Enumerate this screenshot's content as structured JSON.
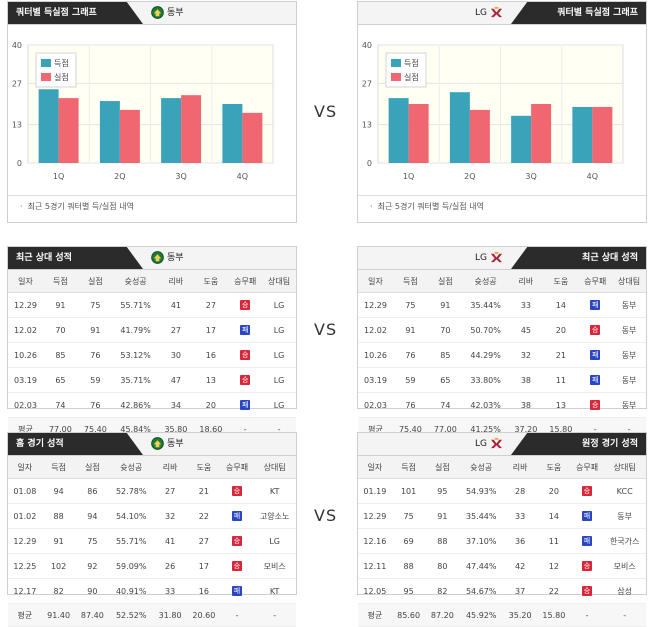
{
  "sections": {
    "quarter": {
      "title": "쿼터별 득실점 그래프",
      "note": "최근 5경기 쿼터별 득/실점 내역"
    },
    "recent": {
      "title": "최근 상대 성적"
    },
    "venue_left": {
      "title": "홈 경기 성적"
    },
    "venue_right": {
      "title": "원정 경기 성적"
    }
  },
  "teams": {
    "left": "동부",
    "right": "LG"
  },
  "vs": "VS",
  "colors": {
    "scored": "#3aa3b9",
    "conceded": "#f06772",
    "win": "#d9263a",
    "loss": "#2a46c4"
  },
  "table_headers": [
    "일자",
    "득점",
    "실점",
    "슛성공",
    "리바",
    "도움",
    "승무패",
    "상대팀"
  ],
  "result_labels": {
    "win": "승",
    "loss": "패"
  },
  "chart_data": [
    {
      "type": "bar",
      "categories": [
        "1Q",
        "2Q",
        "3Q",
        "4Q"
      ],
      "series": [
        {
          "name": "득점",
          "values": [
            25,
            21,
            22,
            20
          ]
        },
        {
          "name": "실점",
          "values": [
            22,
            18,
            23,
            17
          ]
        }
      ],
      "yticks": [
        "0",
        "13",
        "27",
        "40"
      ],
      "ylim": [
        0,
        40
      ],
      "legend": "top-left",
      "grid": true
    },
    {
      "type": "bar",
      "categories": [
        "1Q",
        "2Q",
        "3Q",
        "4Q"
      ],
      "series": [
        {
          "name": "득점",
          "values": [
            22,
            24,
            16,
            19
          ]
        },
        {
          "name": "실점",
          "values": [
            20,
            18,
            20,
            19
          ]
        }
      ],
      "yticks": [
        "0",
        "13",
        "27",
        "40"
      ],
      "ylim": [
        0,
        40
      ],
      "legend": "top-left",
      "grid": true
    }
  ],
  "recent_left": {
    "rows": [
      {
        "date": "12.29",
        "pts": "91",
        "opp_pts": "75",
        "fg": "55.71%",
        "reb": "41",
        "ast": "27",
        "result": "win",
        "opp": "LG"
      },
      {
        "date": "12.02",
        "pts": "70",
        "opp_pts": "91",
        "fg": "41.79%",
        "reb": "27",
        "ast": "17",
        "result": "loss",
        "opp": "LG"
      },
      {
        "date": "10.26",
        "pts": "85",
        "opp_pts": "76",
        "fg": "53.12%",
        "reb": "30",
        "ast": "16",
        "result": "win",
        "opp": "LG"
      },
      {
        "date": "03.19",
        "pts": "65",
        "opp_pts": "59",
        "fg": "35.71%",
        "reb": "47",
        "ast": "13",
        "result": "win",
        "opp": "LG"
      },
      {
        "date": "02.03",
        "pts": "74",
        "opp_pts": "76",
        "fg": "42.86%",
        "reb": "34",
        "ast": "20",
        "result": "loss",
        "opp": "LG"
      }
    ],
    "avg": {
      "label": "평균",
      "pts": "77.00",
      "opp_pts": "75.40",
      "fg": "45.84%",
      "reb": "35.80",
      "ast": "18.60",
      "result": "-",
      "opp": "-"
    }
  },
  "recent_right": {
    "rows": [
      {
        "date": "12.29",
        "pts": "75",
        "opp_pts": "91",
        "fg": "35.44%",
        "reb": "33",
        "ast": "14",
        "result": "loss",
        "opp": "동부"
      },
      {
        "date": "12.02",
        "pts": "91",
        "opp_pts": "70",
        "fg": "50.70%",
        "reb": "45",
        "ast": "20",
        "result": "win",
        "opp": "동부"
      },
      {
        "date": "10.26",
        "pts": "76",
        "opp_pts": "85",
        "fg": "44.29%",
        "reb": "32",
        "ast": "21",
        "result": "loss",
        "opp": "동부"
      },
      {
        "date": "03.19",
        "pts": "59",
        "opp_pts": "65",
        "fg": "33.80%",
        "reb": "38",
        "ast": "11",
        "result": "loss",
        "opp": "동부"
      },
      {
        "date": "02.03",
        "pts": "76",
        "opp_pts": "74",
        "fg": "42.03%",
        "reb": "38",
        "ast": "13",
        "result": "win",
        "opp": "동부"
      }
    ],
    "avg": {
      "label": "평균",
      "pts": "75.40",
      "opp_pts": "77.00",
      "fg": "41.25%",
      "reb": "37.20",
      "ast": "15.80",
      "result": "-",
      "opp": "-"
    }
  },
  "venue_left_table": {
    "rows": [
      {
        "date": "01.08",
        "pts": "94",
        "opp_pts": "86",
        "fg": "52.78%",
        "reb": "27",
        "ast": "21",
        "result": "win",
        "opp": "KT"
      },
      {
        "date": "01.02",
        "pts": "88",
        "opp_pts": "94",
        "fg": "54.10%",
        "reb": "32",
        "ast": "22",
        "result": "loss",
        "opp": "고양소노"
      },
      {
        "date": "12.29",
        "pts": "91",
        "opp_pts": "75",
        "fg": "55.71%",
        "reb": "41",
        "ast": "27",
        "result": "win",
        "opp": "LG"
      },
      {
        "date": "12.25",
        "pts": "102",
        "opp_pts": "92",
        "fg": "59.09%",
        "reb": "26",
        "ast": "17",
        "result": "win",
        "opp": "모비스"
      },
      {
        "date": "12.17",
        "pts": "82",
        "opp_pts": "90",
        "fg": "40.91%",
        "reb": "33",
        "ast": "16",
        "result": "loss",
        "opp": "KT"
      }
    ],
    "avg": {
      "label": "평균",
      "pts": "91.40",
      "opp_pts": "87.40",
      "fg": "52.52%",
      "reb": "31.80",
      "ast": "20.60",
      "result": "-",
      "opp": "-"
    }
  },
  "venue_right_table": {
    "rows": [
      {
        "date": "01.19",
        "pts": "101",
        "opp_pts": "95",
        "fg": "54.93%",
        "reb": "28",
        "ast": "20",
        "result": "win",
        "opp": "KCC"
      },
      {
        "date": "12.29",
        "pts": "75",
        "opp_pts": "91",
        "fg": "35.44%",
        "reb": "33",
        "ast": "14",
        "result": "loss",
        "opp": "동부"
      },
      {
        "date": "12.16",
        "pts": "69",
        "opp_pts": "88",
        "fg": "37.10%",
        "reb": "36",
        "ast": "11",
        "result": "loss",
        "opp": "한국가스"
      },
      {
        "date": "12.11",
        "pts": "88",
        "opp_pts": "80",
        "fg": "47.44%",
        "reb": "42",
        "ast": "12",
        "result": "win",
        "opp": "모비스"
      },
      {
        "date": "12.05",
        "pts": "95",
        "opp_pts": "82",
        "fg": "54.67%",
        "reb": "37",
        "ast": "22",
        "result": "win",
        "opp": "삼성"
      }
    ],
    "avg": {
      "label": "평균",
      "pts": "85.60",
      "opp_pts": "87.20",
      "fg": "45.92%",
      "reb": "35.20",
      "ast": "15.80",
      "result": "-",
      "opp": "-"
    }
  }
}
